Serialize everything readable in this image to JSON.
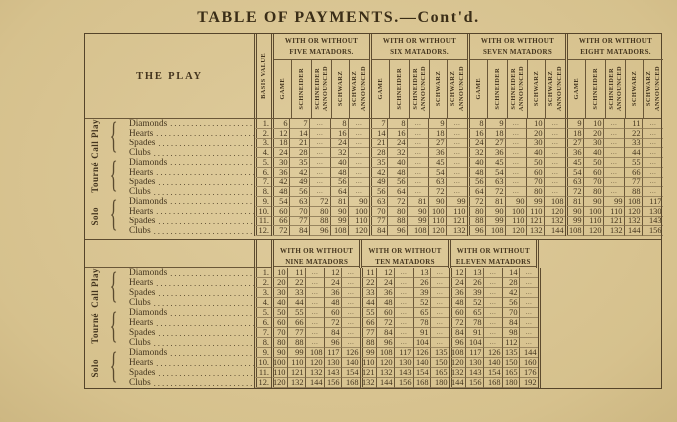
{
  "title": "TABLE OF PAYMENTS.—Cont'd.",
  "colors": {
    "paper": "#d9c592",
    "ink": "#44351e",
    "rule": "#6a5738"
  },
  "table": {
    "play_header": "THE PLAY",
    "basis_header": "Basis Value",
    "sub_headers": [
      "Game",
      "Schneider",
      "Schneider Announced",
      "Schwarz",
      "Schwarz Announced"
    ],
    "play_groups": [
      {
        "name": "Call Play",
        "plays": [
          "Diamonds",
          "Hearts",
          "Spades",
          "Clubs"
        ]
      },
      {
        "name": "Tourné",
        "plays": [
          "Diamonds",
          "Hearts",
          "Spades",
          "Clubs"
        ]
      },
      {
        "name": "Solo",
        "plays": [
          "Diamonds",
          "Hearts",
          "Spades",
          "Clubs"
        ]
      }
    ],
    "basis_values": [
      "1.",
      "2.",
      "3.",
      "4.",
      "5.",
      "6.",
      "7.",
      "8.",
      "9.",
      "10.",
      "11.",
      "12."
    ],
    "matador_groups_upper": [
      [
        "WITH OR WITHOUT",
        "FIVE MATADORS."
      ],
      [
        "WITH OR WITHOUT",
        "SIX MATADORS."
      ],
      [
        "WITH OR WITHOUT",
        "SEVEN MATADORS"
      ],
      [
        "WITH OR WITHOUT",
        "EIGHT MATADORS."
      ]
    ],
    "matador_groups_lower": [
      [
        "WITH OR WITHOUT",
        "NINE MATADORS"
      ],
      [
        "WITH OR WITHOUT",
        "TEN MATADORS"
      ],
      [
        "WITH OR WITHOUT",
        "ELEVEN MATADORS"
      ]
    ],
    "upper_rows": [
      [
        [
          "6",
          "7",
          "...",
          "8",
          "..."
        ],
        [
          "7",
          "8",
          "...",
          "9",
          "..."
        ],
        [
          "8",
          "9",
          "...",
          "10",
          "..."
        ],
        [
          "9",
          "10",
          "...",
          "11",
          "..."
        ]
      ],
      [
        [
          "12",
          "14",
          "...",
          "16",
          "..."
        ],
        [
          "14",
          "16",
          "...",
          "18",
          "..."
        ],
        [
          "16",
          "18",
          "...",
          "20",
          "..."
        ],
        [
          "18",
          "20",
          "...",
          "22",
          "..."
        ]
      ],
      [
        [
          "18",
          "21",
          "...",
          "24",
          "..."
        ],
        [
          "21",
          "24",
          "...",
          "27",
          "..."
        ],
        [
          "24",
          "27",
          "...",
          "30",
          "..."
        ],
        [
          "27",
          "30",
          "...",
          "33",
          "..."
        ]
      ],
      [
        [
          "24",
          "28",
          "...",
          "32",
          "..."
        ],
        [
          "28",
          "32",
          "...",
          "36",
          "..."
        ],
        [
          "32",
          "36",
          "...",
          "40",
          "..."
        ],
        [
          "36",
          "40",
          "...",
          "44",
          "..."
        ]
      ],
      [
        [
          "30",
          "35",
          "...",
          "40",
          "..."
        ],
        [
          "35",
          "40",
          "...",
          "45",
          "..."
        ],
        [
          "40",
          "45",
          "...",
          "50",
          "..."
        ],
        [
          "45",
          "50",
          "...",
          "55",
          "..."
        ]
      ],
      [
        [
          "36",
          "42",
          "...",
          "48",
          "..."
        ],
        [
          "42",
          "48",
          "...",
          "54",
          "..."
        ],
        [
          "48",
          "54",
          "...",
          "60",
          "..."
        ],
        [
          "54",
          "60",
          "...",
          "66",
          "..."
        ]
      ],
      [
        [
          "42",
          "49",
          "...",
          "56",
          "..."
        ],
        [
          "49",
          "56",
          "...",
          "63",
          "..."
        ],
        [
          "56",
          "63",
          "...",
          "70",
          "..."
        ],
        [
          "63",
          "70",
          "...",
          "77",
          "..."
        ]
      ],
      [
        [
          "48",
          "56",
          "...",
          "64",
          "..."
        ],
        [
          "56",
          "64",
          "...",
          "72",
          "..."
        ],
        [
          "64",
          "72",
          "...",
          "80",
          "..."
        ],
        [
          "72",
          "80",
          "...",
          "88",
          "..."
        ]
      ],
      [
        [
          "54",
          "63",
          "72",
          "81",
          "90"
        ],
        [
          "63",
          "72",
          "81",
          "90",
          "99"
        ],
        [
          "72",
          "81",
          "90",
          "99",
          "108"
        ],
        [
          "81",
          "90",
          "99",
          "108",
          "117"
        ]
      ],
      [
        [
          "60",
          "70",
          "80",
          "90",
          "100"
        ],
        [
          "70",
          "80",
          "90",
          "100",
          "110"
        ],
        [
          "80",
          "90",
          "100",
          "110",
          "120"
        ],
        [
          "90",
          "100",
          "110",
          "120",
          "130"
        ]
      ],
      [
        [
          "66",
          "77",
          "88",
          "99",
          "110"
        ],
        [
          "77",
          "88",
          "99",
          "110",
          "121"
        ],
        [
          "88",
          "99",
          "110",
          "121",
          "132"
        ],
        [
          "99",
          "110",
          "121",
          "132",
          "143"
        ]
      ],
      [
        [
          "72",
          "84",
          "96",
          "108",
          "120"
        ],
        [
          "84",
          "96",
          "108",
          "120",
          "132"
        ],
        [
          "96",
          "108",
          "120",
          "132",
          "144"
        ],
        [
          "108",
          "120",
          "132",
          "144",
          "156"
        ]
      ]
    ],
    "lower_rows": [
      [
        [
          "10",
          "11",
          "...",
          "12",
          "..."
        ],
        [
          "11",
          "12",
          "...",
          "13",
          "..."
        ],
        [
          "12",
          "13",
          "...",
          "14",
          "..."
        ]
      ],
      [
        [
          "20",
          "22",
          "...",
          "24",
          "..."
        ],
        [
          "22",
          "24",
          "...",
          "26",
          "..."
        ],
        [
          "24",
          "26",
          "...",
          "28",
          "..."
        ]
      ],
      [
        [
          "30",
          "33",
          "...",
          "36",
          "..."
        ],
        [
          "33",
          "36",
          "...",
          "39",
          "..."
        ],
        [
          "36",
          "39",
          "...",
          "42",
          "..."
        ]
      ],
      [
        [
          "40",
          "44",
          "...",
          "48",
          "..."
        ],
        [
          "44",
          "48",
          "...",
          "52",
          "..."
        ],
        [
          "48",
          "52",
          "...",
          "56",
          "..."
        ]
      ],
      [
        [
          "50",
          "55",
          "...",
          "60",
          "..."
        ],
        [
          "55",
          "60",
          "...",
          "65",
          "..."
        ],
        [
          "60",
          "65",
          "...",
          "70",
          "..."
        ]
      ],
      [
        [
          "60",
          "66",
          "...",
          "72",
          "..."
        ],
        [
          "66",
          "72",
          "...",
          "78",
          "..."
        ],
        [
          "72",
          "78",
          "...",
          "84",
          "..."
        ]
      ],
      [
        [
          "70",
          "77",
          "...",
          "84",
          "..."
        ],
        [
          "77",
          "84",
          "...",
          "91",
          "..."
        ],
        [
          "84",
          "91",
          "...",
          "98",
          "..."
        ]
      ],
      [
        [
          "80",
          "88",
          "...",
          "96",
          "..."
        ],
        [
          "88",
          "96",
          "...",
          "104",
          "..."
        ],
        [
          "96",
          "104",
          "...",
          "112",
          "..."
        ]
      ],
      [
        [
          "90",
          "99",
          "108",
          "117",
          "126"
        ],
        [
          "99",
          "108",
          "117",
          "126",
          "135"
        ],
        [
          "108",
          "117",
          "126",
          "135",
          "144"
        ]
      ],
      [
        [
          "100",
          "110",
          "120",
          "130",
          "140"
        ],
        [
          "110",
          "120",
          "130",
          "140",
          "150"
        ],
        [
          "120",
          "130",
          "140",
          "150",
          "160"
        ]
      ],
      [
        [
          "110",
          "121",
          "132",
          "143",
          "154"
        ],
        [
          "121",
          "132",
          "143",
          "154",
          "165"
        ],
        [
          "132",
          "143",
          "154",
          "165",
          "176"
        ]
      ],
      [
        [
          "120",
          "132",
          "144",
          "156",
          "168"
        ],
        [
          "132",
          "144",
          "156",
          "168",
          "180"
        ],
        [
          "144",
          "156",
          "168",
          "180",
          "192"
        ]
      ]
    ]
  }
}
